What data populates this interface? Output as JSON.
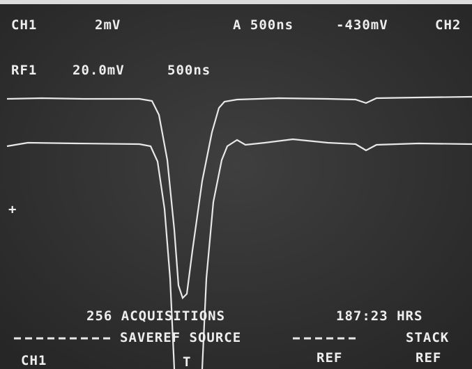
{
  "header": {
    "row1": [
      "CH1",
      "2mV",
      "A 500ns",
      "-430mV",
      "CH2"
    ],
    "row2": [
      "RF1",
      "20.0mV",
      "500ns"
    ]
  },
  "status": {
    "acquisitions": "256 ACQUISITIONS",
    "time": "187:23 HRS"
  },
  "menu": {
    "title": "SAVEREF SOURCE",
    "stack": "STACK"
  },
  "softkeys": [
    "CH1",
    "REF",
    "REF"
  ]
}
